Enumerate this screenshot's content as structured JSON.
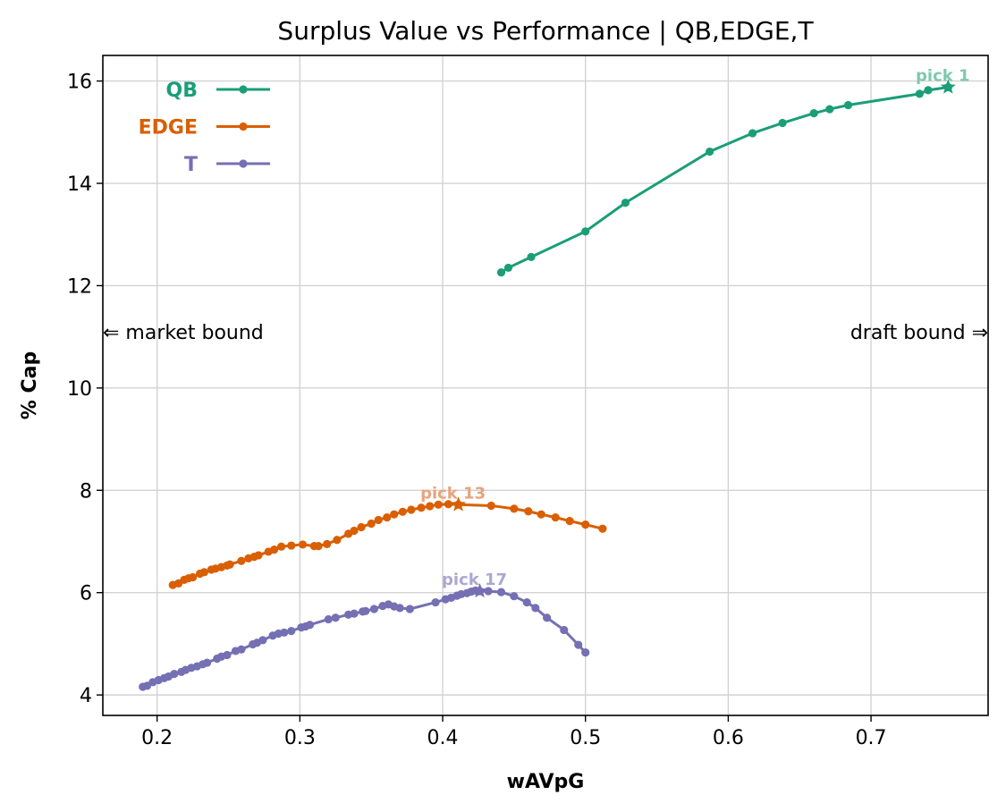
{
  "chart_data": {
    "type": "line",
    "title": "Surplus Value vs Performance | QB,EDGE,T",
    "xlabel": "wAVpG",
    "ylabel": "% Cap",
    "xlim": [
      0.162,
      0.782
    ],
    "ylim": [
      3.6,
      16.5
    ],
    "xticks": [
      0.2,
      0.3,
      0.4,
      0.5,
      0.6,
      0.7
    ],
    "xtick_labels": [
      "0.2",
      "0.3",
      "0.4",
      "0.5",
      "0.6",
      "0.7"
    ],
    "yticks": [
      4,
      6,
      8,
      10,
      12,
      14,
      16
    ],
    "ytick_labels": [
      "4",
      "6",
      "8",
      "10",
      "12",
      "14",
      "16"
    ],
    "grid": true,
    "legend_position": "top-left",
    "annotations": {
      "left": "⇐ market bound",
      "right": "draft bound ⇒"
    },
    "series": [
      {
        "name": "QB",
        "color": "#1b9e77",
        "pick_label": "pick 1",
        "pick_color": "#7fc8b0",
        "star": [
          0.754,
          15.88
        ],
        "points": [
          [
            0.441,
            12.26
          ],
          [
            0.446,
            12.35
          ],
          [
            0.462,
            12.56
          ],
          [
            0.5,
            13.06
          ],
          [
            0.528,
            13.62
          ],
          [
            0.587,
            14.62
          ],
          [
            0.617,
            14.98
          ],
          [
            0.638,
            15.18
          ],
          [
            0.66,
            15.37
          ],
          [
            0.671,
            15.45
          ],
          [
            0.684,
            15.53
          ],
          [
            0.734,
            15.75
          ],
          [
            0.74,
            15.82
          ],
          [
            0.754,
            15.88
          ]
        ]
      },
      {
        "name": "EDGE",
        "color": "#d95f02",
        "pick_label": "pick 13",
        "pick_color": "#e6a47e",
        "star": [
          0.411,
          7.72
        ],
        "points": [
          [
            0.211,
            6.15
          ],
          [
            0.215,
            6.18
          ],
          [
            0.219,
            6.25
          ],
          [
            0.222,
            6.28
          ],
          [
            0.225,
            6.3
          ],
          [
            0.23,
            6.37
          ],
          [
            0.233,
            6.4
          ],
          [
            0.238,
            6.45
          ],
          [
            0.241,
            6.47
          ],
          [
            0.245,
            6.5
          ],
          [
            0.249,
            6.53
          ],
          [
            0.251,
            6.55
          ],
          [
            0.259,
            6.62
          ],
          [
            0.264,
            6.67
          ],
          [
            0.268,
            6.7
          ],
          [
            0.271,
            6.73
          ],
          [
            0.278,
            6.8
          ],
          [
            0.282,
            6.84
          ],
          [
            0.287,
            6.9
          ],
          [
            0.294,
            6.92
          ],
          [
            0.302,
            6.94
          ],
          [
            0.31,
            6.91
          ],
          [
            0.313,
            6.91
          ],
          [
            0.319,
            6.95
          ],
          [
            0.326,
            7.03
          ],
          [
            0.334,
            7.15
          ],
          [
            0.338,
            7.21
          ],
          [
            0.343,
            7.28
          ],
          [
            0.35,
            7.35
          ],
          [
            0.355,
            7.42
          ],
          [
            0.361,
            7.47
          ],
          [
            0.366,
            7.53
          ],
          [
            0.372,
            7.58
          ],
          [
            0.378,
            7.62
          ],
          [
            0.385,
            7.66
          ],
          [
            0.391,
            7.69
          ],
          [
            0.397,
            7.72
          ],
          [
            0.404,
            7.73
          ],
          [
            0.411,
            7.72
          ],
          [
            0.434,
            7.7
          ],
          [
            0.45,
            7.64
          ],
          [
            0.46,
            7.59
          ],
          [
            0.469,
            7.53
          ],
          [
            0.479,
            7.47
          ],
          [
            0.489,
            7.4
          ],
          [
            0.5,
            7.33
          ],
          [
            0.512,
            7.25
          ]
        ]
      },
      {
        "name": "T",
        "color": "#7570b3",
        "pick_label": "pick 17",
        "pick_color": "#aaa8d0",
        "star": [
          0.426,
          6.03
        ],
        "points": [
          [
            0.19,
            4.16
          ],
          [
            0.193,
            4.18
          ],
          [
            0.197,
            4.25
          ],
          [
            0.201,
            4.29
          ],
          [
            0.205,
            4.33
          ],
          [
            0.208,
            4.36
          ],
          [
            0.212,
            4.41
          ],
          [
            0.217,
            4.45
          ],
          [
            0.22,
            4.49
          ],
          [
            0.224,
            4.53
          ],
          [
            0.228,
            4.56
          ],
          [
            0.232,
            4.6
          ],
          [
            0.235,
            4.63
          ],
          [
            0.242,
            4.71
          ],
          [
            0.245,
            4.75
          ],
          [
            0.249,
            4.78
          ],
          [
            0.255,
            4.86
          ],
          [
            0.259,
            4.89
          ],
          [
            0.267,
            4.99
          ],
          [
            0.27,
            5.02
          ],
          [
            0.274,
            5.07
          ],
          [
            0.281,
            5.16
          ],
          [
            0.285,
            5.2
          ],
          [
            0.289,
            5.22
          ],
          [
            0.294,
            5.25
          ],
          [
            0.301,
            5.32
          ],
          [
            0.304,
            5.34
          ],
          [
            0.307,
            5.37
          ],
          [
            0.32,
            5.48
          ],
          [
            0.325,
            5.51
          ],
          [
            0.334,
            5.57
          ],
          [
            0.338,
            5.59
          ],
          [
            0.344,
            5.63
          ],
          [
            0.346,
            5.64
          ],
          [
            0.352,
            5.68
          ],
          [
            0.358,
            5.74
          ],
          [
            0.362,
            5.77
          ],
          [
            0.366,
            5.73
          ],
          [
            0.37,
            5.7
          ],
          [
            0.377,
            5.68
          ],
          [
            0.395,
            5.81
          ],
          [
            0.402,
            5.87
          ],
          [
            0.406,
            5.9
          ],
          [
            0.41,
            5.94
          ],
          [
            0.413,
            5.97
          ],
          [
            0.417,
            5.99
          ],
          [
            0.42,
            6.02
          ],
          [
            0.423,
            6.04
          ],
          [
            0.426,
            6.03
          ],
          [
            0.432,
            6.03
          ],
          [
            0.441,
            6.01
          ],
          [
            0.45,
            5.93
          ],
          [
            0.459,
            5.81
          ],
          [
            0.465,
            5.7
          ],
          [
            0.473,
            5.51
          ],
          [
            0.485,
            5.27
          ],
          [
            0.495,
            4.98
          ],
          [
            0.5,
            4.83
          ]
        ]
      }
    ]
  }
}
